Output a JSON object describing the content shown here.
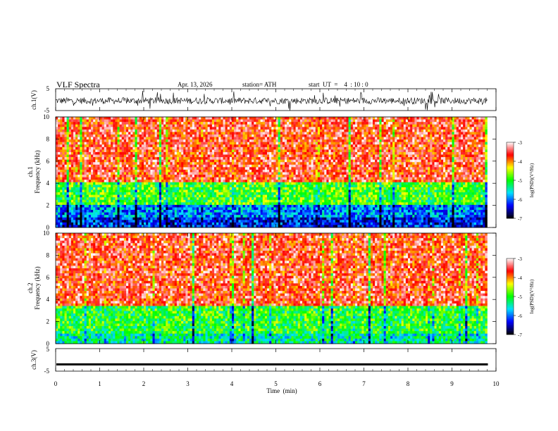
{
  "header": {
    "title": "VLF Spectra",
    "date": "Apr. 13, 2026",
    "station": "station= ATH",
    "start": "start  UT  =    4  : 10 : 0"
  },
  "chart_data": [
    {
      "type": "line",
      "name": "ch.1 waveform",
      "ylabel": "ch.1(V)",
      "ylim": [
        -5,
        5
      ],
      "yticks": [
        -5,
        5
      ],
      "xlim": [
        0,
        10
      ],
      "approx_data_extent_min": 9.8,
      "approx_center_V": -0.5,
      "approx_amplitude_V": 1.5
    },
    {
      "type": "heatmap",
      "name": "ch.1 spectrogram",
      "ylabel": "ch.1\nFrequency (kHz)",
      "ylim": [
        0,
        10
      ],
      "yticks": [
        0,
        2,
        4,
        6,
        8,
        10
      ],
      "xlim": [
        0,
        10
      ],
      "colorbar": {
        "label": "log(PSD)(V²/Hz)",
        "range": [
          -7,
          -3
        ],
        "ticks": [
          -7,
          -6,
          -5,
          -4,
          -3
        ]
      },
      "approx_band_levels": [
        {
          "fmin": 0,
          "fmax": 1,
          "log_psd": -6.3
        },
        {
          "fmin": 1,
          "fmax": 2,
          "log_psd": -5.9
        },
        {
          "fmin": 2,
          "fmax": 4,
          "log_psd": -4.9
        },
        {
          "fmin": 4,
          "fmax": 10,
          "log_psd": -3.6
        }
      ]
    },
    {
      "type": "heatmap",
      "name": "ch.2 spectrogram",
      "ylabel": "ch.2\nFrequency (kHz)",
      "ylim": [
        0,
        10
      ],
      "yticks": [
        0,
        2,
        4,
        6,
        8,
        10
      ],
      "xlim": [
        0,
        10
      ],
      "colorbar": {
        "label": "log(PSD)(V²/Hz)",
        "range": [
          -7,
          -3
        ],
        "ticks": [
          -7,
          -6,
          -5,
          -4,
          -3
        ]
      },
      "approx_band_levels": [
        {
          "fmin": 0,
          "fmax": 1,
          "log_psd": -5.4
        },
        {
          "fmin": 1,
          "fmax": 3.5,
          "log_psd": -5.0
        },
        {
          "fmin": 3.5,
          "fmax": 10,
          "log_psd": -3.6
        }
      ]
    },
    {
      "type": "line",
      "name": "ch.3 waveform",
      "ylabel": "ch.3(V)",
      "ylim": [
        -5,
        5
      ],
      "yticks": [
        -5,
        5
      ],
      "xlim": [
        0,
        10
      ],
      "approx_level_V": -2
    }
  ],
  "xaxis": {
    "label": "Time  (min)",
    "ticks": [
      "0",
      "1",
      "2",
      "3",
      "4",
      "5",
      "6",
      "7",
      "8",
      "9",
      "10"
    ]
  },
  "colors": {
    "colormap": [
      "#000000",
      "#0000ff",
      "#00e0ff",
      "#00ff00",
      "#ffff00",
      "#ff0000",
      "#ffffff"
    ]
  }
}
